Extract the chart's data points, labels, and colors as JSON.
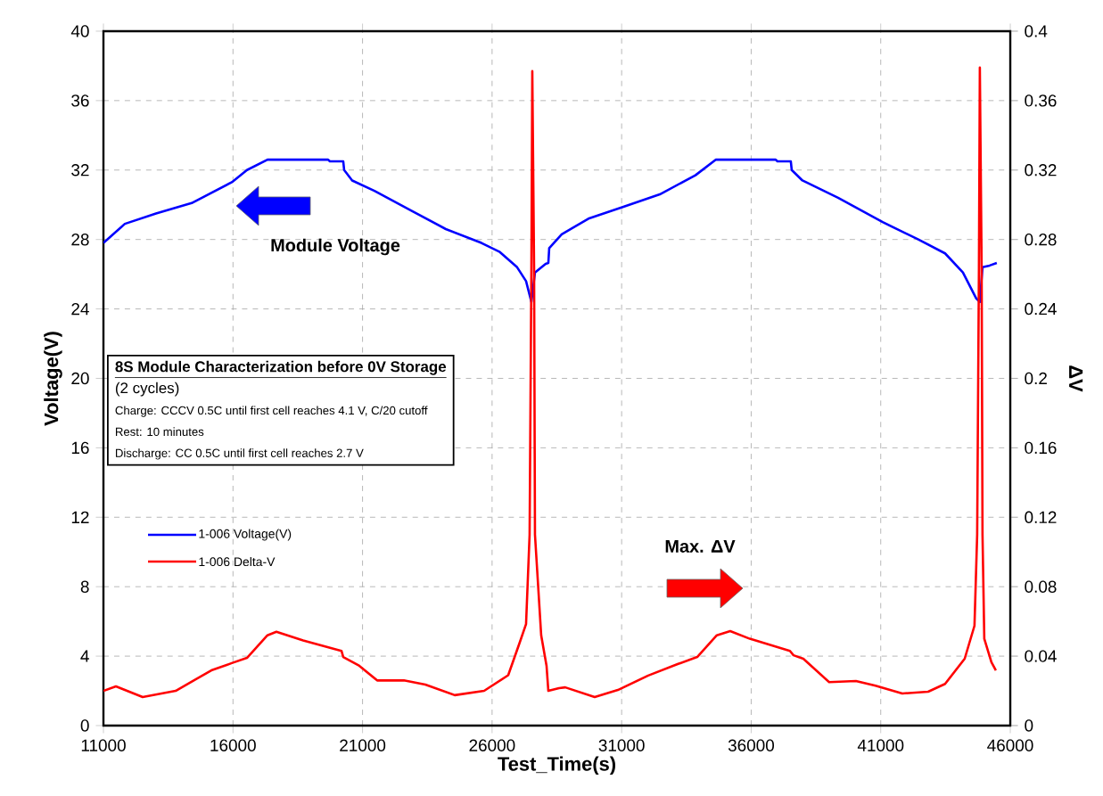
{
  "chart_data": {
    "type": "line",
    "xlabel": "Test_Time(s)",
    "ylabel": "Voltage(V)",
    "y2label": "ΔV",
    "xlim": [
      11000,
      46000
    ],
    "xticks": [
      11000,
      16000,
      21000,
      26000,
      31000,
      36000,
      41000,
      46000
    ],
    "ylim": [
      0,
      40
    ],
    "yticks": [
      0,
      4,
      8,
      12,
      16,
      20,
      24,
      28,
      32,
      36,
      40
    ],
    "y2lim": [
      0,
      0.4
    ],
    "y2ticks": [
      0,
      0.04,
      0.08,
      0.12,
      0.16,
      0.2,
      0.24,
      0.28,
      0.32,
      0.36,
      0.4
    ],
    "grid": true,
    "legend": "left",
    "marker": "none",
    "line_style": "solid",
    "series": [
      {
        "name": "1-006 Voltage(V)",
        "color": "#0000ff",
        "x": [
          11000,
          11826,
          13030,
          14406,
          15955,
          16540,
          17331,
          19671,
          19740,
          20256,
          20291,
          20600,
          21460,
          22837,
          24213,
          25590,
          26278,
          26966,
          27311,
          27517,
          27655,
          28068,
          28171,
          28205,
          28687,
          29719,
          31095,
          32472,
          33848,
          34640,
          36945,
          37014,
          37530,
          37565,
          37977,
          39354,
          41074,
          42451,
          43483,
          44171,
          44687,
          44825,
          44928,
          45201,
          45479
        ],
        "values": [
          27.8,
          28.9,
          29.5,
          30.1,
          31.3,
          32.0,
          32.6,
          32.6,
          32.5,
          32.5,
          32.0,
          31.4,
          30.8,
          29.7,
          28.6,
          27.8,
          27.3,
          26.4,
          25.6,
          24.4,
          26.1,
          26.6,
          26.65,
          27.5,
          28.3,
          29.2,
          29.9,
          30.6,
          31.7,
          32.6,
          32.6,
          32.5,
          32.5,
          32.0,
          31.4,
          30.4,
          29.0,
          28.0,
          27.2,
          26.1,
          24.6,
          24.4,
          26.4,
          26.5,
          26.65
        ]
      },
      {
        "name": "1-006 Delta-V",
        "color": "#ff0000",
        "axis": "y2",
        "x": [
          11000,
          11482,
          12514,
          13787,
          15164,
          15955,
          16540,
          17331,
          17675,
          18708,
          20187,
          20256,
          20876,
          21564,
          22596,
          23422,
          24558,
          25693,
          26622,
          27070,
          27311,
          27448,
          27517,
          27552,
          27621,
          27655,
          27895,
          28102,
          28171,
          28584,
          28824,
          29960,
          30855,
          32025,
          33160,
          33917,
          34674,
          35190,
          35947,
          37496,
          37633,
          38012,
          39010,
          40042,
          40799,
          41831,
          42829,
          43483,
          44240,
          44618,
          44722,
          44790,
          44825,
          44894,
          44928,
          44997,
          45272,
          45444
        ],
        "values": [
          0.02,
          0.0226,
          0.0164,
          0.02,
          0.0318,
          0.036,
          0.039,
          0.052,
          0.054,
          0.049,
          0.043,
          0.0395,
          0.0344,
          0.026,
          0.026,
          0.0236,
          0.0175,
          0.02,
          0.029,
          0.048,
          0.0585,
          0.11,
          0.264,
          0.377,
          0.264,
          0.11,
          0.052,
          0.0344,
          0.02,
          0.0216,
          0.022,
          0.0164,
          0.0205,
          0.0288,
          0.0354,
          0.0395,
          0.052,
          0.0544,
          0.05,
          0.043,
          0.0405,
          0.0385,
          0.025,
          0.0257,
          0.023,
          0.0185,
          0.0195,
          0.024,
          0.0385,
          0.0575,
          0.11,
          0.264,
          0.379,
          0.264,
          0.11,
          0.05,
          0.0365,
          0.0318
        ]
      }
    ],
    "annotations": [
      "Module Voltage",
      "Max. ΔV",
      "8S Module Characterization before 0V Storage",
      "(2 cycles)",
      "Charge: CCCV 0.5C until first cell reaches 4.1 V, C/20 cutoff",
      "Rest: 10 minutes",
      "Discharge: CC 0.5C until first cell reaches 2.7 V"
    ]
  }
}
